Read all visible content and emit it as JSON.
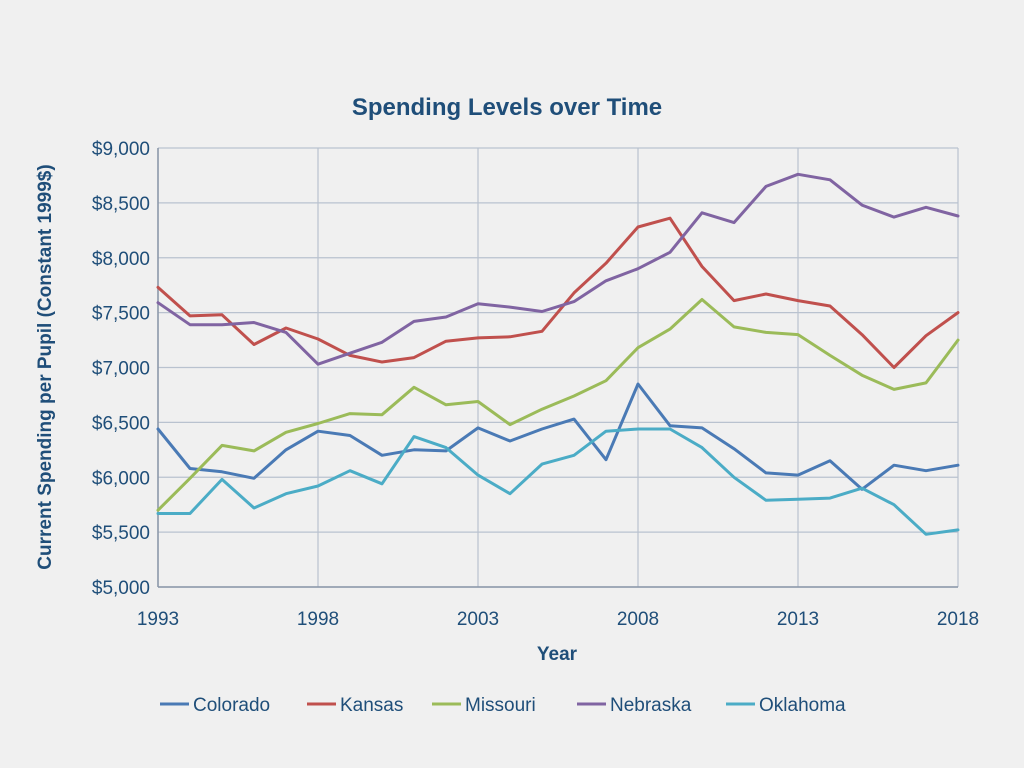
{
  "chart_data": {
    "type": "line",
    "title": "Spending Levels over Time",
    "xlabel": "Year",
    "ylabel": "Current Spending per Pupil (Constant 1999$)",
    "xlim": [
      1993,
      2018
    ],
    "ylim": [
      5000,
      9000
    ],
    "x_ticks": [
      "1993",
      "1998",
      "2003",
      "2008",
      "2013",
      "2018"
    ],
    "x_tick_values": [
      1993,
      1998,
      2003,
      2008,
      2013,
      2018
    ],
    "y_ticks": [
      "$5,000",
      "$5,500",
      "$6,000",
      "$6,500",
      "$7,000",
      "$7,500",
      "$8,000",
      "$8,500",
      "$9,000"
    ],
    "y_tick_values": [
      5000,
      5500,
      6000,
      6500,
      7000,
      7500,
      8000,
      8500,
      9000
    ],
    "grid": true,
    "legend_position": "bottom",
    "x": [
      1993,
      1994,
      1995,
      1996,
      1997,
      1998,
      1999,
      2000,
      2001,
      2002,
      2003,
      2004,
      2005,
      2006,
      2007,
      2008,
      2009,
      2010,
      2011,
      2012,
      2013,
      2014,
      2015,
      2016,
      2017,
      2018
    ],
    "series": [
      {
        "name": "Colorado",
        "color": "#4a7ab5",
        "values": [
          6440,
          6080,
          6050,
          5990,
          6250,
          6420,
          6380,
          6200,
          6250,
          6240,
          6450,
          6330,
          6440,
          6530,
          6160,
          6850,
          6470,
          6450,
          6260,
          6040,
          6020,
          6150,
          5890,
          6110,
          6060,
          6110
        ]
      },
      {
        "name": "Kansas",
        "color": "#c0504d",
        "values": [
          7730,
          7470,
          7480,
          7210,
          7360,
          7260,
          7110,
          7050,
          7090,
          7240,
          7270,
          7280,
          7330,
          7680,
          7950,
          8280,
          8360,
          7920,
          7610,
          7670,
          7610,
          7560,
          7300,
          7000,
          7290,
          7500
        ]
      },
      {
        "name": "Missouri",
        "color": "#9bbb59",
        "values": [
          5700,
          5990,
          6290,
          6240,
          6410,
          6490,
          6580,
          6570,
          6820,
          6660,
          6690,
          6480,
          6620,
          6740,
          6880,
          7180,
          7350,
          7620,
          7370,
          7320,
          7300,
          7110,
          6930,
          6800,
          6860,
          7250
        ]
      },
      {
        "name": "Nebraska",
        "color": "#8064a2",
        "values": [
          7590,
          7390,
          7390,
          7410,
          7320,
          7030,
          7130,
          7230,
          7420,
          7460,
          7580,
          7550,
          7510,
          7600,
          7790,
          7900,
          8050,
          8410,
          8320,
          8650,
          8760,
          8710,
          8480,
          8370,
          8460,
          8380
        ]
      },
      {
        "name": "Oklahoma",
        "color": "#4bacc6",
        "values": [
          5670,
          5670,
          5980,
          5720,
          5850,
          5920,
          6060,
          5940,
          6370,
          6270,
          6020,
          5850,
          6120,
          6200,
          6420,
          6440,
          6440,
          6270,
          6000,
          5790,
          5800,
          5810,
          5900,
          5750,
          5480,
          5520
        ]
      }
    ]
  }
}
